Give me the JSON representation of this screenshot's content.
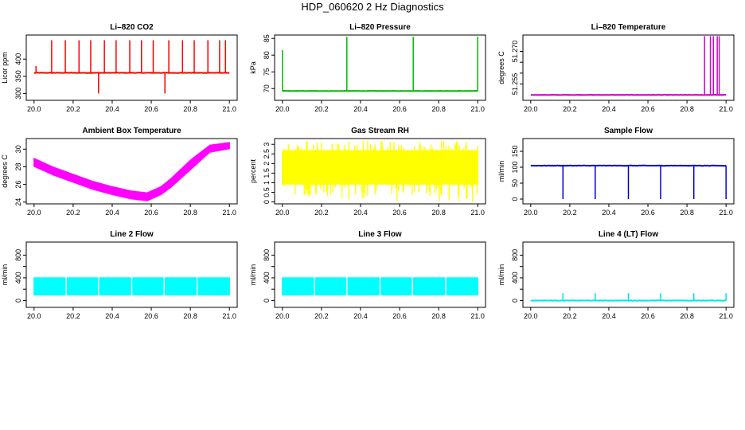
{
  "page": {
    "title": "HDP_060620  2 Hz Diagnostics"
  },
  "chart_data": [
    {
      "type": "line",
      "title": "Li–820 CO2",
      "ylabel": "Licor ppm",
      "color": "#ff0000",
      "xlim": [
        20.0,
        21.0
      ],
      "ylim": [
        280,
        470
      ],
      "xticks": [
        "20.0",
        "20.2",
        "20.4",
        "20.6",
        "20.8",
        "21.0"
      ],
      "yticks": [
        300,
        350,
        400
      ],
      "series": [
        {
          "baseline": 360,
          "spikes": [
            {
              "x": 20.01,
              "y": 380
            },
            {
              "x": 20.09,
              "y": 455
            },
            {
              "x": 20.16,
              "y": 455
            },
            {
              "x": 20.23,
              "y": 455
            },
            {
              "x": 20.29,
              "y": 455
            },
            {
              "x": 20.33,
              "y": 300
            },
            {
              "x": 20.36,
              "y": 455
            },
            {
              "x": 20.42,
              "y": 455
            },
            {
              "x": 20.49,
              "y": 455
            },
            {
              "x": 20.55,
              "y": 455
            },
            {
              "x": 20.61,
              "y": 455
            },
            {
              "x": 20.67,
              "y": 300
            },
            {
              "x": 20.69,
              "y": 455
            },
            {
              "x": 20.76,
              "y": 455
            },
            {
              "x": 20.82,
              "y": 455
            },
            {
              "x": 20.89,
              "y": 455
            },
            {
              "x": 20.95,
              "y": 455
            },
            {
              "x": 20.98,
              "y": 455
            }
          ]
        }
      ]
    },
    {
      "type": "line",
      "title": "Li–820 Pressure",
      "ylabel": "kPa",
      "color": "#00bb00",
      "xlim": [
        20.0,
        21.0
      ],
      "ylim": [
        66.5,
        86
      ],
      "xticks": [
        "20.0",
        "20.2",
        "20.4",
        "20.6",
        "20.8",
        "21.0"
      ],
      "yticks": [
        70,
        75,
        80,
        85
      ],
      "series": [
        {
          "baseline": 69.3,
          "spikes": [
            {
              "x": 20.0,
              "y": 81.5
            },
            {
              "x": 20.33,
              "y": 85.5
            },
            {
              "x": 20.67,
              "y": 85.5
            },
            {
              "x": 21.0,
              "y": 85.5
            }
          ]
        }
      ]
    },
    {
      "type": "line",
      "title": "Li–820 Temperature",
      "ylabel": "degrees C",
      "color": "#cc00cc",
      "xlim": [
        20.0,
        21.0
      ],
      "ylim": [
        51.2475,
        51.2775
      ],
      "xticks": [
        "20.0",
        "20.2",
        "20.4",
        "20.6",
        "20.8",
        "21.0"
      ],
      "yticks": [
        51.255,
        51.26,
        51.265,
        51.27
      ],
      "ytick_labels": [
        "51.255",
        "",
        "",
        "51.270"
      ],
      "series": [
        {
          "baseline": 51.25,
          "spikes": [
            {
              "x": 20.89,
              "y": 51.277
            },
            {
              "x": 20.92,
              "y": 51.277
            },
            {
              "x": 20.935,
              "y": 51.277
            },
            {
              "x": 20.955,
              "y": 51.277
            },
            {
              "x": 20.965,
              "y": 51.277
            }
          ]
        }
      ]
    },
    {
      "type": "area",
      "title": "Ambient Box Temperature",
      "ylabel": "degrees C",
      "color": "#ff00ff",
      "xlim": [
        20.0,
        21.0
      ],
      "ylim": [
        23.8,
        31.2
      ],
      "xticks": [
        "20.0",
        "20.2",
        "20.4",
        "20.6",
        "20.8",
        "21.0"
      ],
      "yticks": [
        24,
        26,
        28,
        30
      ],
      "series": [
        {
          "x": [
            20.0,
            20.1,
            20.2,
            20.3,
            20.4,
            20.5,
            20.58,
            20.65,
            20.7,
            20.8,
            20.9,
            21.0
          ],
          "low": [
            28.0,
            27.0,
            26.2,
            25.4,
            24.8,
            24.3,
            24.1,
            24.8,
            25.6,
            27.6,
            29.6,
            30.0
          ],
          "high": [
            29.0,
            28.0,
            27.2,
            26.4,
            25.8,
            25.3,
            25.1,
            25.8,
            26.7,
            28.8,
            30.5,
            30.8
          ]
        }
      ]
    },
    {
      "type": "area",
      "title": "Gas Stream RH",
      "ylabel": "percent",
      "color": "#ffff00",
      "xlim": [
        20.0,
        21.0
      ],
      "ylim": [
        -0.1,
        3.3
      ],
      "xticks": [
        "20.0",
        "20.2",
        "20.4",
        "20.6",
        "20.8",
        "21.0"
      ],
      "yticks": [
        0.0,
        0.5,
        1.0,
        1.5,
        2.0,
        2.5,
        3.0
      ],
      "series": [
        {
          "x": [
            20.0,
            21.0
          ],
          "low": [
            0.9,
            0.9
          ],
          "high": [
            2.7,
            2.7
          ],
          "max": 3.2,
          "min": 0.0
        }
      ]
    },
    {
      "type": "line",
      "title": "Sample Flow",
      "ylabel": "ml/min",
      "color": "#0000cc",
      "xlim": [
        20.0,
        21.0
      ],
      "ylim": [
        -15,
        190
      ],
      "xticks": [
        "20.0",
        "20.2",
        "20.4",
        "20.6",
        "20.8",
        "21.0"
      ],
      "yticks": [
        0,
        50,
        100,
        150
      ],
      "series": [
        {
          "baseline": 105,
          "spikes": [
            {
              "x": 20.165,
              "y": 0
            },
            {
              "x": 20.33,
              "y": 0
            },
            {
              "x": 20.5,
              "y": 0
            },
            {
              "x": 20.665,
              "y": 0
            },
            {
              "x": 20.835,
              "y": 0
            },
            {
              "x": 21.0,
              "y": 0
            }
          ]
        }
      ]
    },
    {
      "type": "area",
      "title": "Line 2 Flow",
      "ylabel": "ml/min",
      "color": "#00ffff",
      "xlim": [
        20.0,
        21.0
      ],
      "ylim": [
        -120,
        1030
      ],
      "xticks": [
        "20.0",
        "20.2",
        "20.4",
        "20.6",
        "20.8",
        "21.0"
      ],
      "yticks": [
        0,
        200,
        400,
        600,
        800
      ],
      "ytick_labels": [
        "0",
        "",
        "400",
        "",
        "800"
      ],
      "series": [
        {
          "x": [
            20.0,
            21.0
          ],
          "low": [
            90,
            90
          ],
          "high": [
            410,
            410
          ],
          "gaps": [
            20.165,
            20.33,
            20.5,
            20.665,
            20.835
          ]
        }
      ]
    },
    {
      "type": "area",
      "title": "Line 3 Flow",
      "ylabel": "ml/min",
      "color": "#00ffff",
      "xlim": [
        20.0,
        21.0
      ],
      "ylim": [
        -120,
        1030
      ],
      "xticks": [
        "20.0",
        "20.2",
        "20.4",
        "20.6",
        "20.8",
        "21.0"
      ],
      "yticks": [
        0,
        200,
        400,
        600,
        800
      ],
      "ytick_labels": [
        "0",
        "",
        "400",
        "",
        "800"
      ],
      "series": [
        {
          "x": [
            20.0,
            21.0
          ],
          "low": [
            90,
            90
          ],
          "high": [
            410,
            410
          ],
          "gaps": [
            20.165,
            20.33,
            20.5,
            20.665,
            20.835
          ]
        }
      ]
    },
    {
      "type": "line",
      "title": "Line 4 (LT) Flow",
      "ylabel": "ml/min",
      "color": "#00e5e5",
      "xlim": [
        20.0,
        21.0
      ],
      "ylim": [
        -120,
        1030
      ],
      "xticks": [
        "20.0",
        "20.2",
        "20.4",
        "20.6",
        "20.8",
        "21.0"
      ],
      "yticks": [
        0,
        200,
        400,
        600,
        800
      ],
      "ytick_labels": [
        "0",
        "",
        "400",
        "",
        "800"
      ],
      "series": [
        {
          "baseline": 0,
          "spikes": [
            {
              "x": 20.165,
              "y": 130
            },
            {
              "x": 20.33,
              "y": 130
            },
            {
              "x": 20.5,
              "y": 130
            },
            {
              "x": 20.665,
              "y": 130
            },
            {
              "x": 20.835,
              "y": 130
            },
            {
              "x": 21.0,
              "y": 130
            }
          ]
        }
      ]
    }
  ]
}
